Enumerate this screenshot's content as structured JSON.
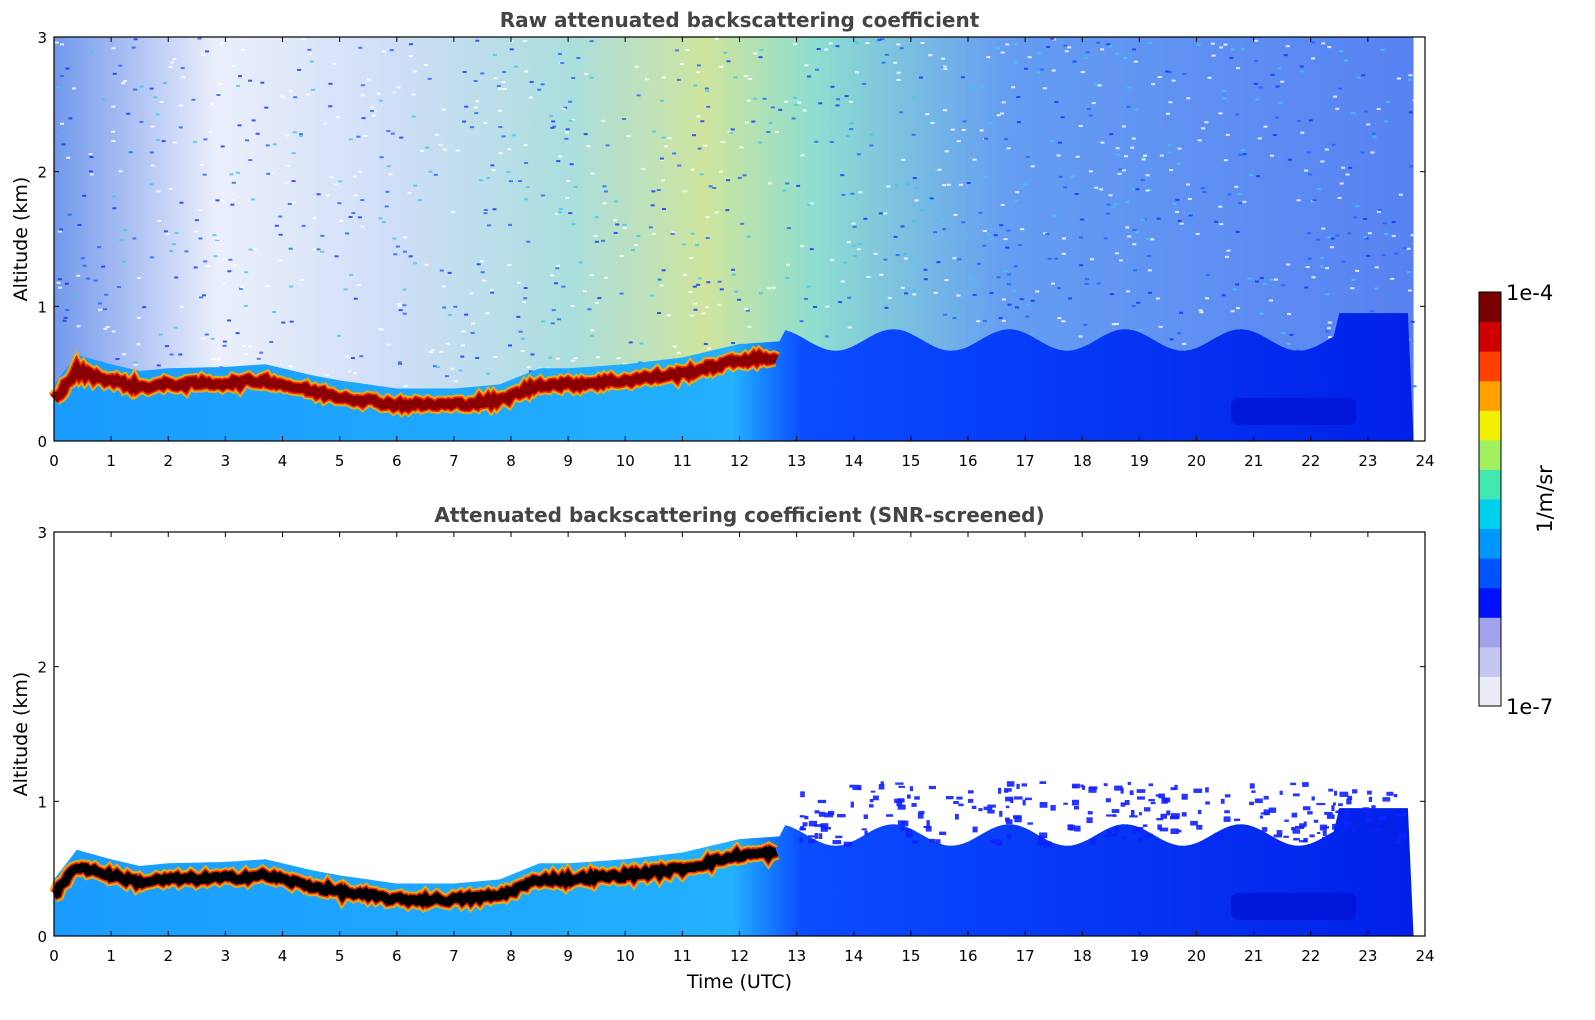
{
  "chart_data": [
    {
      "type": "heatmap",
      "title": "Raw attenuated backscattering coefficient",
      "xlabel": "",
      "ylabel": "Altitude (km)",
      "xlim": [
        0,
        24
      ],
      "ylim": [
        0,
        3
      ],
      "x_ticks": [
        "0",
        "1",
        "2",
        "3",
        "4",
        "5",
        "6",
        "7",
        "8",
        "9",
        "10",
        "11",
        "12",
        "13",
        "14",
        "15",
        "16",
        "17",
        "18",
        "19",
        "20",
        "21",
        "22",
        "23",
        "24"
      ],
      "y_ticks": [
        "0",
        "1",
        "2",
        "3"
      ],
      "data_end_x": 23.8,
      "layer_top": {
        "x": [
          0,
          0.4,
          1,
          1.5,
          2,
          3,
          3.7,
          4.5,
          5,
          6,
          7,
          7.8,
          8.5,
          9,
          10,
          11,
          12,
          12.7
        ],
        "y": [
          0.3,
          0.52,
          0.45,
          0.4,
          0.42,
          0.43,
          0.45,
          0.37,
          0.33,
          0.27,
          0.27,
          0.3,
          0.42,
          0.42,
          0.45,
          0.5,
          0.6,
          0.62
        ]
      },
      "colorbar": {
        "min_label": "1e-7",
        "max_label": "1e-4",
        "label": "1/m/sr",
        "colors": [
          "#ececf8",
          "#c6c6f2",
          "#a2a2ec",
          "#0010ff",
          "#0054ff",
          "#0098ff",
          "#00d0f0",
          "#40e8b0",
          "#a0f060",
          "#f0f000",
          "#ffa000",
          "#ff4000",
          "#d00000",
          "#7a0000"
        ]
      }
    },
    {
      "type": "heatmap",
      "title": "Attenuated backscattering coefficient (SNR-screened)",
      "xlabel": "Time (UTC)",
      "ylabel": "Altitude (km)",
      "xlim": [
        0,
        24
      ],
      "ylim": [
        0,
        3
      ],
      "x_ticks": [
        "0",
        "1",
        "2",
        "3",
        "4",
        "5",
        "6",
        "7",
        "8",
        "9",
        "10",
        "11",
        "12",
        "13",
        "14",
        "15",
        "16",
        "17",
        "18",
        "19",
        "20",
        "21",
        "22",
        "23",
        "24"
      ],
      "y_ticks": [
        "0",
        "1",
        "2",
        "3"
      ],
      "data_end_x": 23.8
    }
  ]
}
